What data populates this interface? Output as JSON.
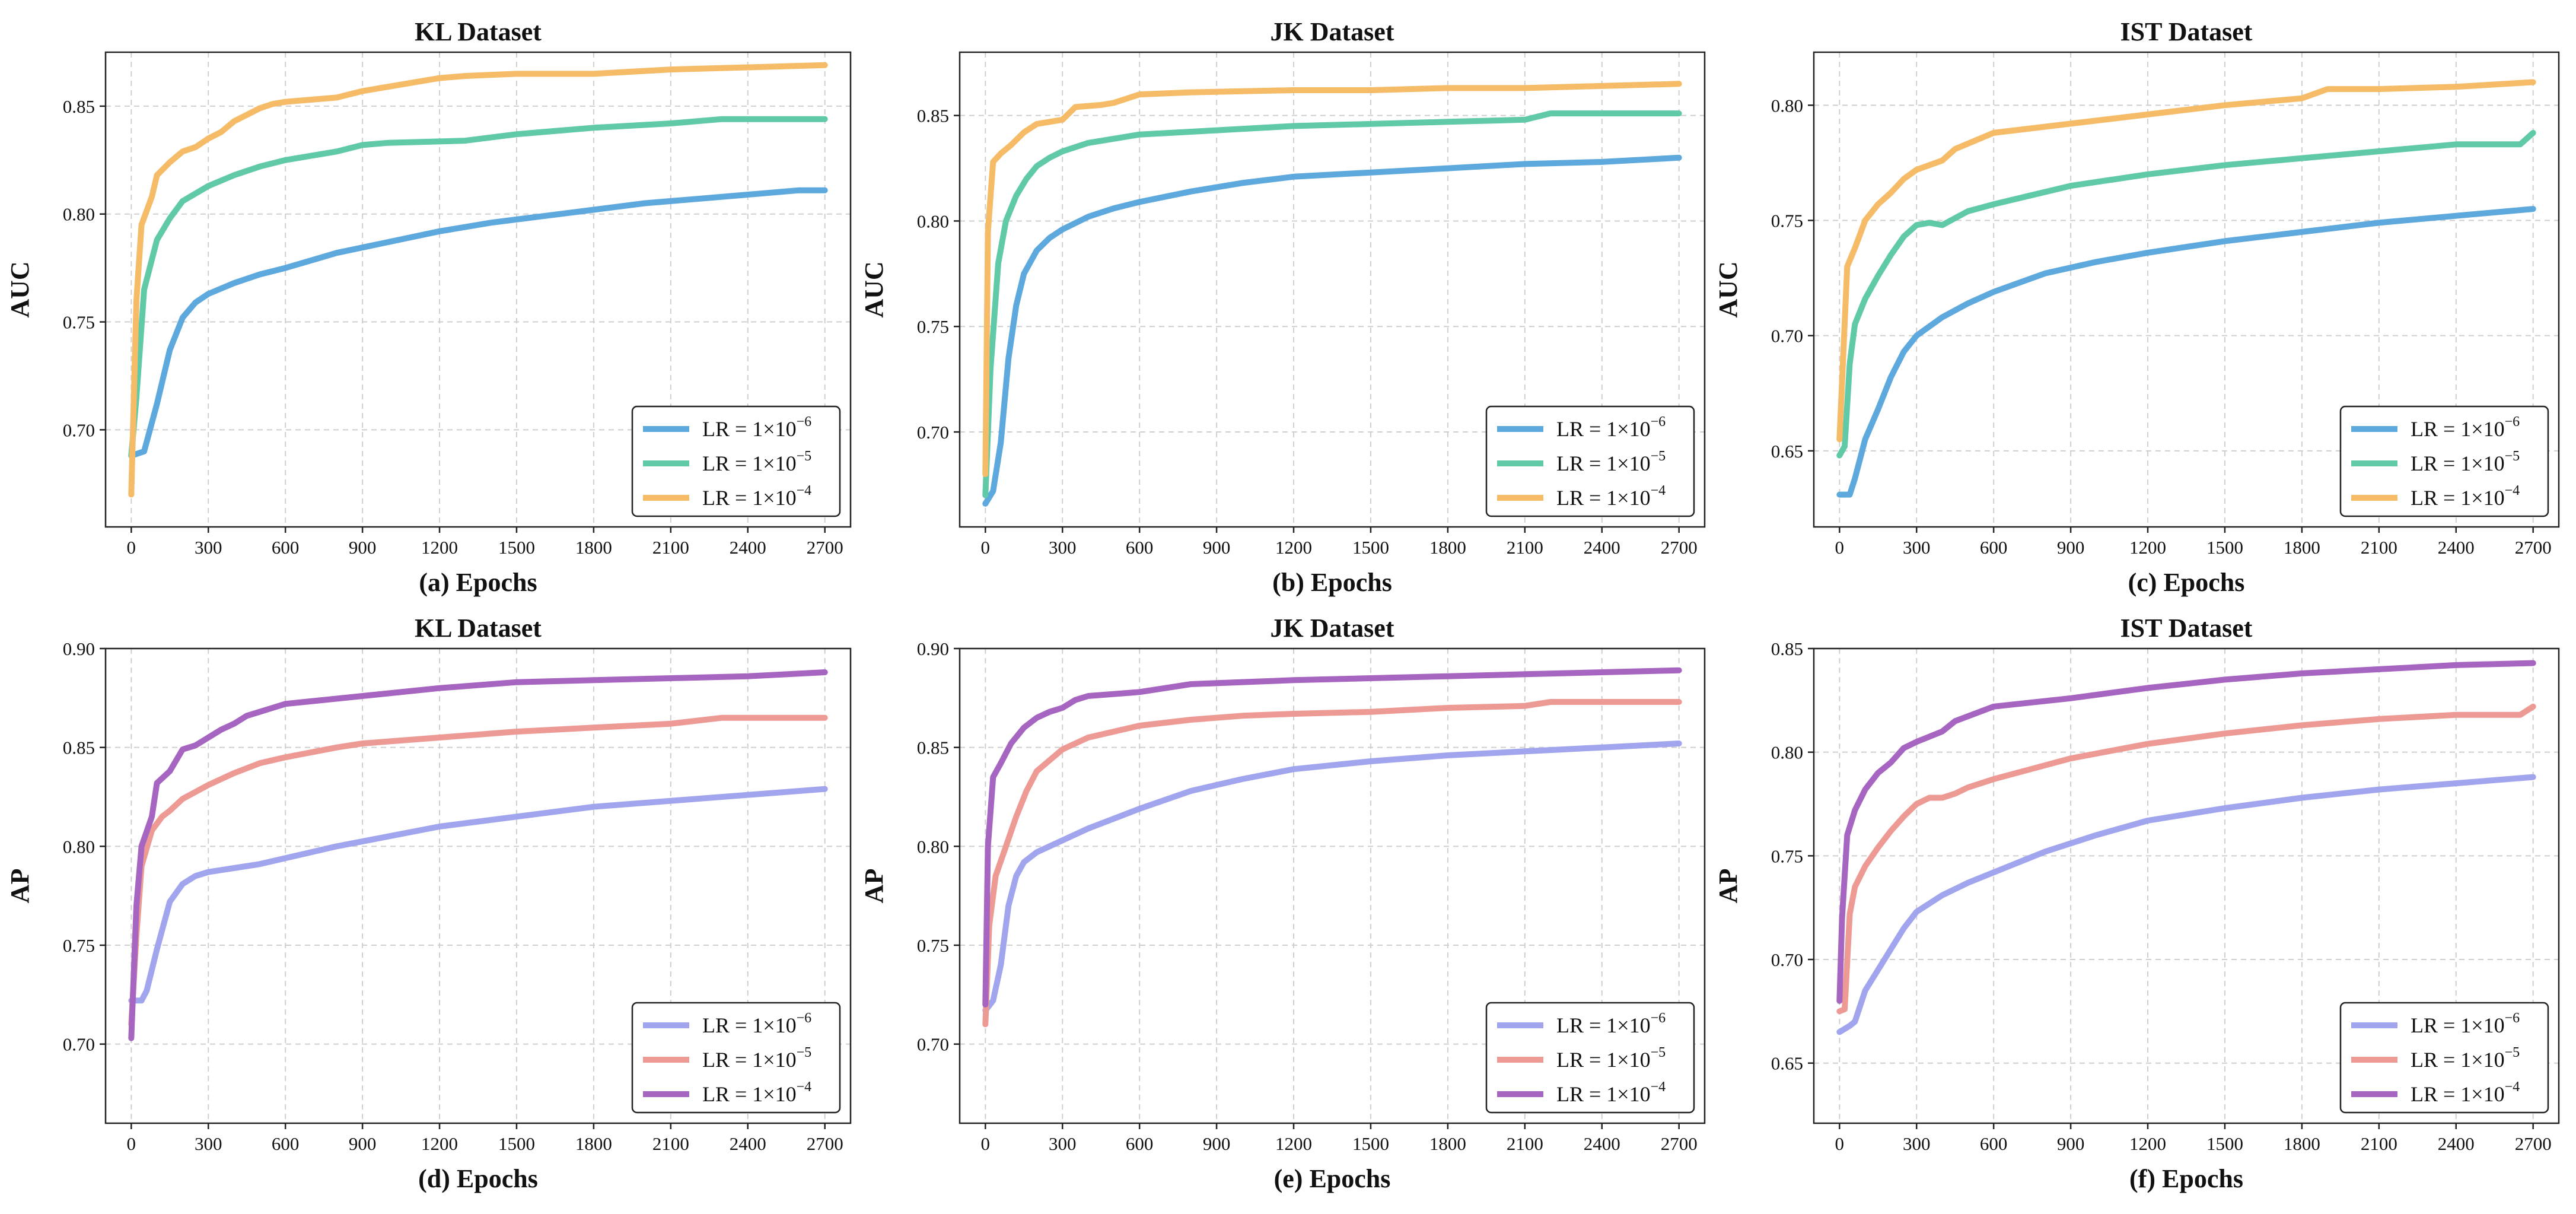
{
  "chart_data": [
    {
      "type": "line",
      "title": "KL Dataset",
      "xlabel": "(a) Epochs",
      "ylabel": "AUC",
      "xlim": [
        -100,
        2800
      ],
      "ylim": [
        0.655,
        0.875
      ],
      "xticks": [
        0,
        300,
        600,
        900,
        1200,
        1500,
        1800,
        2100,
        2400,
        2700
      ],
      "yticks": [
        0.7,
        0.75,
        0.8,
        0.85
      ],
      "ytick_labels": [
        "0.70",
        "0.75",
        "0.80",
        "0.85"
      ],
      "legend": "bottom-right",
      "series": [
        {
          "name": "LR = 1×10",
          "exp": "−6",
          "color": "#5DA8DC",
          "x": [
            0,
            50,
            100,
            150,
            200,
            250,
            300,
            400,
            500,
            600,
            800,
            1000,
            1200,
            1400,
            1600,
            1800,
            2000,
            2200,
            2400,
            2600,
            2700
          ],
          "y": [
            0.688,
            0.69,
            0.712,
            0.737,
            0.752,
            0.759,
            0.763,
            0.768,
            0.772,
            0.775,
            0.782,
            0.787,
            0.792,
            0.796,
            0.799,
            0.802,
            0.805,
            0.807,
            0.809,
            0.811,
            0.811
          ]
        },
        {
          "name": "LR = 1×10",
          "exp": "−5",
          "color": "#60C9A7",
          "x": [
            0,
            20,
            50,
            100,
            150,
            200,
            300,
            400,
            500,
            600,
            800,
            900,
            1000,
            1300,
            1500,
            1800,
            2100,
            2300,
            2700
          ],
          "y": [
            0.688,
            0.715,
            0.765,
            0.788,
            0.798,
            0.806,
            0.813,
            0.818,
            0.822,
            0.825,
            0.829,
            0.832,
            0.833,
            0.834,
            0.837,
            0.84,
            0.842,
            0.844,
            0.844
          ]
        },
        {
          "name": "LR = 1×10",
          "exp": "−4",
          "color": "#F5BB66",
          "x": [
            0,
            20,
            40,
            80,
            100,
            150,
            200,
            250,
            300,
            350,
            400,
            450,
            500,
            550,
            600,
            800,
            900,
            1000,
            1200,
            1300,
            1500,
            1800,
            2100,
            2400,
            2700
          ],
          "y": [
            0.67,
            0.76,
            0.795,
            0.808,
            0.818,
            0.824,
            0.829,
            0.831,
            0.835,
            0.838,
            0.843,
            0.846,
            0.849,
            0.851,
            0.852,
            0.854,
            0.857,
            0.859,
            0.863,
            0.864,
            0.865,
            0.865,
            0.867,
            0.868,
            0.869
          ]
        }
      ]
    },
    {
      "type": "line",
      "title": "JK Dataset",
      "xlabel": "(b) Epochs",
      "ylabel": "AUC",
      "xlim": [
        -100,
        2800
      ],
      "ylim": [
        0.655,
        0.88
      ],
      "xticks": [
        0,
        300,
        600,
        900,
        1200,
        1500,
        1800,
        2100,
        2400,
        2700
      ],
      "yticks": [
        0.7,
        0.75,
        0.8,
        0.85
      ],
      "ytick_labels": [
        "0.70",
        "0.75",
        "0.80",
        "0.85"
      ],
      "legend": "bottom-right",
      "series": [
        {
          "name": "LR = 1×10",
          "exp": "−6",
          "color": "#5DA8DC",
          "x": [
            0,
            30,
            60,
            90,
            120,
            150,
            200,
            250,
            300,
            400,
            500,
            600,
            800,
            1000,
            1200,
            1500,
            1800,
            2100,
            2400,
            2700
          ],
          "y": [
            0.666,
            0.672,
            0.695,
            0.735,
            0.76,
            0.775,
            0.786,
            0.792,
            0.796,
            0.802,
            0.806,
            0.809,
            0.814,
            0.818,
            0.821,
            0.823,
            0.825,
            0.827,
            0.828,
            0.83
          ]
        },
        {
          "name": "LR = 1×10",
          "exp": "−5",
          "color": "#60C9A7",
          "x": [
            0,
            20,
            50,
            80,
            120,
            160,
            200,
            250,
            300,
            400,
            500,
            600,
            900,
            1200,
            1500,
            1800,
            2100,
            2200,
            2400,
            2700
          ],
          "y": [
            0.67,
            0.73,
            0.78,
            0.8,
            0.812,
            0.82,
            0.826,
            0.83,
            0.833,
            0.837,
            0.839,
            0.841,
            0.843,
            0.845,
            0.846,
            0.847,
            0.848,
            0.851,
            0.851,
            0.851
          ]
        },
        {
          "name": "LR = 1×10",
          "exp": "−4",
          "color": "#F5BB66",
          "x": [
            0,
            10,
            30,
            60,
            100,
            150,
            200,
            250,
            300,
            350,
            450,
            500,
            600,
            800,
            1200,
            1500,
            1800,
            2100,
            2400,
            2700
          ],
          "y": [
            0.68,
            0.795,
            0.828,
            0.832,
            0.836,
            0.842,
            0.846,
            0.847,
            0.848,
            0.854,
            0.855,
            0.856,
            0.86,
            0.861,
            0.862,
            0.862,
            0.863,
            0.863,
            0.864,
            0.865
          ]
        }
      ]
    },
    {
      "type": "line",
      "title": "IST Dataset",
      "xlabel": "(c) Epochs",
      "ylabel": "AUC",
      "xlim": [
        -100,
        2800
      ],
      "ylim": [
        0.617,
        0.823
      ],
      "xticks": [
        0,
        300,
        600,
        900,
        1200,
        1500,
        1800,
        2100,
        2400,
        2700
      ],
      "yticks": [
        0.65,
        0.7,
        0.75,
        0.8
      ],
      "ytick_labels": [
        "0.65",
        "0.70",
        "0.75",
        "0.80"
      ],
      "legend": "bottom-right",
      "series": [
        {
          "name": "LR = 1×10",
          "exp": "−6",
          "color": "#5DA8DC",
          "x": [
            0,
            40,
            60,
            100,
            150,
            200,
            250,
            300,
            400,
            500,
            600,
            800,
            1000,
            1200,
            1500,
            1800,
            2100,
            2400,
            2700
          ],
          "y": [
            0.631,
            0.631,
            0.638,
            0.655,
            0.668,
            0.682,
            0.693,
            0.7,
            0.708,
            0.714,
            0.719,
            0.727,
            0.732,
            0.736,
            0.741,
            0.745,
            0.749,
            0.752,
            0.755
          ]
        },
        {
          "name": "LR = 1×10",
          "exp": "−5",
          "color": "#60C9A7",
          "x": [
            0,
            20,
            40,
            60,
            100,
            150,
            200,
            250,
            300,
            350,
            400,
            450,
            500,
            600,
            900,
            1200,
            1500,
            1800,
            2100,
            2400,
            2650,
            2700
          ],
          "y": [
            0.648,
            0.652,
            0.688,
            0.705,
            0.716,
            0.726,
            0.735,
            0.743,
            0.748,
            0.749,
            0.748,
            0.751,
            0.754,
            0.757,
            0.765,
            0.77,
            0.774,
            0.777,
            0.78,
            0.783,
            0.783,
            0.788
          ]
        },
        {
          "name": "LR = 1×10",
          "exp": "−4",
          "color": "#F5BB66",
          "x": [
            0,
            10,
            30,
            60,
            100,
            150,
            200,
            250,
            300,
            400,
            450,
            600,
            900,
            1200,
            1500,
            1800,
            1900,
            2100,
            2400,
            2700
          ],
          "y": [
            0.655,
            0.68,
            0.73,
            0.738,
            0.75,
            0.757,
            0.762,
            0.768,
            0.772,
            0.776,
            0.781,
            0.788,
            0.792,
            0.796,
            0.8,
            0.803,
            0.807,
            0.807,
            0.808,
            0.81
          ]
        }
      ]
    },
    {
      "type": "line",
      "title": "KL Dataset",
      "xlabel": "(d) Epochs",
      "ylabel": "AP",
      "xlim": [
        -100,
        2800
      ],
      "ylim": [
        0.66,
        0.9
      ],
      "xticks": [
        0,
        300,
        600,
        900,
        1200,
        1500,
        1800,
        2100,
        2400,
        2700
      ],
      "yticks": [
        0.7,
        0.75,
        0.8,
        0.85,
        0.9
      ],
      "ytick_labels": [
        "0.70",
        "0.75",
        "0.80",
        "0.85",
        "0.90"
      ],
      "legend": "bottom-right",
      "series": [
        {
          "name": "LR = 1×10",
          "exp": "−6",
          "color": "#A0A5EE",
          "x": [
            0,
            40,
            60,
            100,
            150,
            200,
            250,
            300,
            400,
            500,
            600,
            800,
            1000,
            1200,
            1500,
            1800,
            2100,
            2400,
            2700
          ],
          "y": [
            0.722,
            0.722,
            0.727,
            0.748,
            0.772,
            0.781,
            0.785,
            0.787,
            0.789,
            0.791,
            0.794,
            0.8,
            0.805,
            0.81,
            0.815,
            0.82,
            0.823,
            0.826,
            0.829
          ]
        },
        {
          "name": "LR = 1×10",
          "exp": "−5",
          "color": "#EE9A94",
          "x": [
            0,
            20,
            40,
            80,
            120,
            150,
            200,
            300,
            400,
            500,
            600,
            800,
            900,
            1200,
            1500,
            1800,
            2100,
            2300,
            2700
          ],
          "y": [
            0.71,
            0.755,
            0.79,
            0.808,
            0.815,
            0.818,
            0.824,
            0.831,
            0.837,
            0.842,
            0.845,
            0.85,
            0.852,
            0.855,
            0.858,
            0.86,
            0.862,
            0.865,
            0.865
          ]
        },
        {
          "name": "LR = 1×10",
          "exp": "−4",
          "color": "#A665C0",
          "x": [
            0,
            20,
            40,
            80,
            100,
            150,
            200,
            250,
            300,
            350,
            400,
            450,
            500,
            550,
            600,
            900,
            1200,
            1500,
            1800,
            2100,
            2400,
            2700
          ],
          "y": [
            0.703,
            0.77,
            0.8,
            0.815,
            0.832,
            0.838,
            0.849,
            0.851,
            0.855,
            0.859,
            0.862,
            0.866,
            0.868,
            0.87,
            0.872,
            0.876,
            0.88,
            0.883,
            0.884,
            0.885,
            0.886,
            0.888
          ]
        }
      ]
    },
    {
      "type": "line",
      "title": "JK Dataset",
      "xlabel": "(e) Epochs",
      "ylabel": "AP",
      "xlim": [
        -100,
        2800
      ],
      "ylim": [
        0.66,
        0.9
      ],
      "xticks": [
        0,
        300,
        600,
        900,
        1200,
        1500,
        1800,
        2100,
        2400,
        2700
      ],
      "yticks": [
        0.7,
        0.75,
        0.8,
        0.85,
        0.9
      ],
      "ytick_labels": [
        "0.70",
        "0.75",
        "0.80",
        "0.85",
        "0.90"
      ],
      "legend": "bottom-right",
      "series": [
        {
          "name": "LR = 1×10",
          "exp": "−6",
          "color": "#A0A5EE",
          "x": [
            0,
            30,
            60,
            90,
            120,
            150,
            200,
            300,
            400,
            500,
            600,
            800,
            1000,
            1200,
            1500,
            1800,
            2100,
            2400,
            2700
          ],
          "y": [
            0.717,
            0.722,
            0.74,
            0.77,
            0.785,
            0.792,
            0.797,
            0.803,
            0.809,
            0.814,
            0.819,
            0.828,
            0.834,
            0.839,
            0.843,
            0.846,
            0.848,
            0.85,
            0.852
          ]
        },
        {
          "name": "LR = 1×10",
          "exp": "−5",
          "color": "#EE9A94",
          "x": [
            0,
            15,
            40,
            80,
            120,
            160,
            200,
            300,
            400,
            500,
            600,
            800,
            1000,
            1200,
            1500,
            1800,
            2100,
            2200,
            2700
          ],
          "y": [
            0.71,
            0.76,
            0.785,
            0.8,
            0.815,
            0.828,
            0.838,
            0.849,
            0.855,
            0.858,
            0.861,
            0.864,
            0.866,
            0.867,
            0.868,
            0.87,
            0.871,
            0.873,
            0.873
          ]
        },
        {
          "name": "LR = 1×10",
          "exp": "−4",
          "color": "#A665C0",
          "x": [
            0,
            10,
            30,
            60,
            100,
            150,
            200,
            250,
            300,
            350,
            400,
            600,
            800,
            1200,
            1500,
            1800,
            2100,
            2400,
            2700
          ],
          "y": [
            0.72,
            0.8,
            0.835,
            0.842,
            0.852,
            0.86,
            0.865,
            0.868,
            0.87,
            0.874,
            0.876,
            0.878,
            0.882,
            0.884,
            0.885,
            0.886,
            0.887,
            0.888,
            0.889
          ]
        }
      ]
    },
    {
      "type": "line",
      "title": "IST Dataset",
      "xlabel": "(f) Epochs",
      "ylabel": "AP",
      "xlim": [
        -100,
        2800
      ],
      "ylim": [
        0.621,
        0.85
      ],
      "xticks": [
        0,
        300,
        600,
        900,
        1200,
        1500,
        1800,
        2100,
        2400,
        2700
      ],
      "yticks": [
        0.65,
        0.7,
        0.75,
        0.8,
        0.85
      ],
      "ytick_labels": [
        "0.65",
        "0.70",
        "0.75",
        "0.80",
        "0.85"
      ],
      "legend": "bottom-right",
      "series": [
        {
          "name": "LR = 1×10",
          "exp": "−6",
          "color": "#A0A5EE",
          "x": [
            0,
            40,
            60,
            100,
            150,
            200,
            250,
            300,
            400,
            500,
            600,
            800,
            1000,
            1200,
            1500,
            1800,
            2100,
            2400,
            2700
          ],
          "y": [
            0.665,
            0.668,
            0.67,
            0.685,
            0.695,
            0.705,
            0.715,
            0.723,
            0.731,
            0.737,
            0.742,
            0.752,
            0.76,
            0.767,
            0.773,
            0.778,
            0.782,
            0.785,
            0.788
          ]
        },
        {
          "name": "LR = 1×10",
          "exp": "−5",
          "color": "#EE9A94",
          "x": [
            0,
            20,
            40,
            60,
            100,
            150,
            200,
            250,
            300,
            350,
            400,
            450,
            500,
            600,
            900,
            1200,
            1500,
            1800,
            2100,
            2400,
            2650,
            2700
          ],
          "y": [
            0.675,
            0.676,
            0.722,
            0.735,
            0.745,
            0.754,
            0.762,
            0.769,
            0.775,
            0.778,
            0.778,
            0.78,
            0.783,
            0.787,
            0.797,
            0.804,
            0.809,
            0.813,
            0.816,
            0.818,
            0.818,
            0.822
          ]
        },
        {
          "name": "LR = 1×10",
          "exp": "−4",
          "color": "#A665C0",
          "x": [
            0,
            10,
            30,
            60,
            100,
            150,
            200,
            250,
            300,
            400,
            450,
            600,
            900,
            1200,
            1500,
            1800,
            2100,
            2400,
            2700
          ],
          "y": [
            0.68,
            0.72,
            0.76,
            0.772,
            0.782,
            0.79,
            0.795,
            0.802,
            0.805,
            0.81,
            0.815,
            0.822,
            0.826,
            0.831,
            0.835,
            0.838,
            0.84,
            0.842,
            0.843
          ]
        }
      ]
    }
  ]
}
